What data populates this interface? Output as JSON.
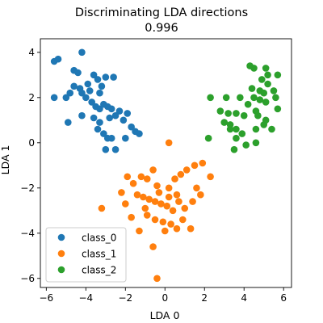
{
  "chart_data": {
    "type": "scatter",
    "title": "Discriminating LDA directions",
    "subtitle": "0.996",
    "xlabel": "LDA 0",
    "ylabel": "LDA 1",
    "xlim": [
      -6.3,
      6.4
    ],
    "ylim": [
      -6.4,
      4.6
    ],
    "xticks": [
      -6,
      -4,
      -2,
      0,
      2,
      4,
      6
    ],
    "yticks": [
      -6,
      -4,
      -2,
      0,
      2,
      4
    ],
    "legend_position": "lower-left",
    "grid": false,
    "series": [
      {
        "name": "class_0",
        "color": "#1f77b4",
        "points": [
          [
            -5.6,
            3.6
          ],
          [
            -5.4,
            3.7
          ],
          [
            -5.6,
            2.0
          ],
          [
            -4.6,
            3.2
          ],
          [
            -4.4,
            3.1
          ],
          [
            -4.2,
            4.0
          ],
          [
            -4.6,
            2.5
          ],
          [
            -4.8,
            2.2
          ],
          [
            -5.0,
            2.0
          ],
          [
            -4.3,
            2.4
          ],
          [
            -4.2,
            2.2
          ],
          [
            -4.0,
            2.0
          ],
          [
            -3.8,
            2.3
          ],
          [
            -3.6,
            3.0
          ],
          [
            -3.4,
            2.8
          ],
          [
            -3.2,
            2.5
          ],
          [
            -3.0,
            2.9
          ],
          [
            -2.6,
            2.9
          ],
          [
            -3.7,
            1.8
          ],
          [
            -3.5,
            1.6
          ],
          [
            -3.3,
            1.5
          ],
          [
            -3.1,
            1.7
          ],
          [
            -2.9,
            1.6
          ],
          [
            -2.7,
            1.5
          ],
          [
            -2.5,
            1.2
          ],
          [
            -2.3,
            1.4
          ],
          [
            -2.1,
            1.0
          ],
          [
            -1.9,
            1.3
          ],
          [
            -1.7,
            0.7
          ],
          [
            -1.5,
            0.5
          ],
          [
            -1.3,
            0.4
          ],
          [
            -4.9,
            0.9
          ],
          [
            -4.2,
            1.2
          ],
          [
            -3.6,
            1.1
          ],
          [
            -3.4,
            0.6
          ],
          [
            -3.1,
            0.4
          ],
          [
            -2.9,
            0.2
          ],
          [
            -2.7,
            0.2
          ],
          [
            -3.0,
            -0.3
          ],
          [
            -2.5,
            -0.3
          ],
          [
            -2.0,
            0.2
          ],
          [
            -3.3,
            0.9
          ],
          [
            -2.8,
            1.1
          ],
          [
            -3.9,
            2.6
          ],
          [
            -3.3,
            2.2
          ]
        ]
      },
      {
        "name": "class_1",
        "color": "#ff7f0e",
        "points": [
          [
            0.2,
            0.0
          ],
          [
            -1.9,
            -1.5
          ],
          [
            -1.6,
            -1.8
          ],
          [
            -2.2,
            -2.2
          ],
          [
            -2.0,
            -2.7
          ],
          [
            -1.2,
            -1.5
          ],
          [
            -0.9,
            -1.6
          ],
          [
            -0.6,
            -1.2
          ],
          [
            -0.4,
            -1.9
          ],
          [
            0.2,
            -2.0
          ],
          [
            0.5,
            -1.6
          ],
          [
            0.8,
            -1.4
          ],
          [
            1.1,
            -1.2
          ],
          [
            1.5,
            -1.0
          ],
          [
            1.9,
            -0.9
          ],
          [
            2.3,
            -1.5
          ],
          [
            -1.4,
            -2.3
          ],
          [
            -1.1,
            -2.4
          ],
          [
            -0.8,
            -2.5
          ],
          [
            -0.5,
            -2.6
          ],
          [
            -0.2,
            -2.7
          ],
          [
            0.1,
            -2.8
          ],
          [
            0.4,
            -3.0
          ],
          [
            0.7,
            -2.6
          ],
          [
            1.0,
            -2.9
          ],
          [
            1.4,
            -2.6
          ],
          [
            1.8,
            -2.3
          ],
          [
            -0.9,
            -3.2
          ],
          [
            -0.5,
            -3.4
          ],
          [
            -0.1,
            -3.5
          ],
          [
            0.3,
            -3.6
          ],
          [
            0.6,
            -3.8
          ],
          [
            0.9,
            -3.4
          ],
          [
            1.3,
            -3.8
          ],
          [
            -3.2,
            -2.9
          ],
          [
            -1.7,
            -3.3
          ],
          [
            -1.3,
            -3.9
          ],
          [
            -0.6,
            -4.6
          ],
          [
            -0.4,
            -6.0
          ],
          [
            0.0,
            -3.9
          ],
          [
            -1.0,
            -2.9
          ],
          [
            0.6,
            -2.3
          ],
          [
            -0.3,
            -2.2
          ],
          [
            0.2,
            -2.4
          ],
          [
            1.6,
            -2.0
          ]
        ]
      },
      {
        "name": "class_2",
        "color": "#2ca02c",
        "points": [
          [
            4.3,
            3.4
          ],
          [
            4.5,
            3.3
          ],
          [
            5.1,
            3.3
          ],
          [
            5.2,
            3.0
          ],
          [
            5.7,
            3.0
          ],
          [
            4.9,
            2.8
          ],
          [
            5.2,
            2.6
          ],
          [
            4.4,
            2.4
          ],
          [
            4.8,
            2.3
          ],
          [
            5.0,
            2.2
          ],
          [
            5.5,
            2.3
          ],
          [
            2.3,
            2.0
          ],
          [
            3.1,
            2.0
          ],
          [
            3.8,
            2.0
          ],
          [
            4.5,
            2.0
          ],
          [
            4.8,
            1.9
          ],
          [
            5.1,
            1.8
          ],
          [
            2.8,
            1.4
          ],
          [
            3.2,
            1.3
          ],
          [
            3.6,
            1.3
          ],
          [
            4.0,
            1.2
          ],
          [
            4.6,
            1.4
          ],
          [
            5.1,
            1.0
          ],
          [
            5.7,
            1.5
          ],
          [
            3.0,
            0.9
          ],
          [
            3.3,
            0.6
          ],
          [
            3.6,
            0.6
          ],
          [
            3.9,
            0.4
          ],
          [
            4.6,
            0.6
          ],
          [
            5.4,
            0.6
          ],
          [
            2.2,
            0.2
          ],
          [
            3.6,
            0.2
          ],
          [
            4.1,
            -0.1
          ],
          [
            4.6,
            0.0
          ],
          [
            3.5,
            -0.3
          ],
          [
            4.2,
            1.7
          ],
          [
            5.6,
            2.0
          ],
          [
            4.7,
            1.2
          ],
          [
            3.3,
            0.8
          ],
          [
            5.0,
            0.8
          ]
        ]
      }
    ]
  }
}
